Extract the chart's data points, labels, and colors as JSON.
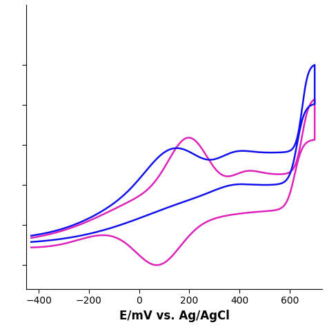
{
  "title": "",
  "xlabel": "E/mV vs. Ag/AgCl",
  "ylabel": "",
  "xlim": [
    -450,
    730
  ],
  "x_ticks": [
    -400,
    -200,
    0,
    200,
    400,
    600
  ],
  "blue_color": "#1010ee",
  "pink_color": "#dd22bb",
  "xlabel_fontsize": 12,
  "xlabel_fontweight": "bold",
  "linewidth": 1.8
}
